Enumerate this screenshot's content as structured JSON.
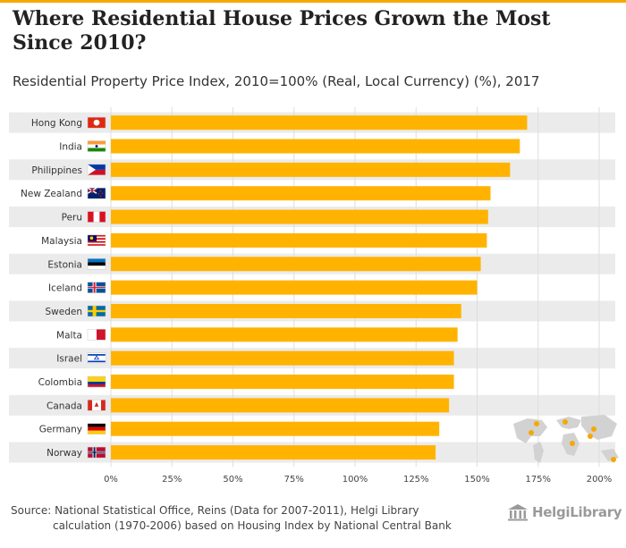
{
  "header": {
    "title": "Where Residential House Prices Grown the Most Since 2010?",
    "subtitle": "Residential Property Price Index, 2010=100% (Real, Local Currency) (%), 2017"
  },
  "footer": {
    "source_line1": "Source: National Statistical Office, Reins (Data for 2007-2011), Helgi Library",
    "source_line2": "calculation (1970-2006) based on Housing Index by National Central Bank",
    "logo_text": "HelgiLibrary"
  },
  "colors": {
    "bar": "#ffb300",
    "band": "#ebebeb",
    "grid": "#dedede",
    "accent": "#f5a800"
  },
  "chart_data": {
    "type": "bar",
    "orientation": "horizontal",
    "title": "Where Residential House Prices Grown the Most Since 2010?",
    "subtitle": "Residential Property Price Index, 2010=100% (Real, Local Currency) (%), 2017",
    "xlabel": "",
    "ylabel": "",
    "xlim": [
      0,
      200
    ],
    "ticks": [
      0,
      25,
      50,
      75,
      100,
      125,
      150,
      175,
      200
    ],
    "tick_labels": [
      "0%",
      "25%",
      "50%",
      "75%",
      "100%",
      "125%",
      "150%",
      "175%",
      "200%"
    ],
    "grid": true,
    "categories": [
      "Hong Kong",
      "India",
      "Philippines",
      "New Zealand",
      "Peru",
      "Malaysia",
      "Estonia",
      "Iceland",
      "Sweden",
      "Malta",
      "Israel",
      "Colombia",
      "Canada",
      "Germany",
      "Norway"
    ],
    "flags": [
      "hong-kong",
      "india",
      "philippines",
      "new-zealand",
      "peru",
      "malaysia",
      "estonia",
      "iceland",
      "sweden",
      "malta",
      "israel",
      "colombia",
      "canada",
      "germany",
      "norway"
    ],
    "values": [
      170.5,
      167.5,
      163.5,
      155.5,
      154.5,
      154.0,
      151.5,
      150.0,
      143.5,
      142.0,
      140.5,
      140.5,
      138.5,
      134.5,
      133.0
    ]
  }
}
